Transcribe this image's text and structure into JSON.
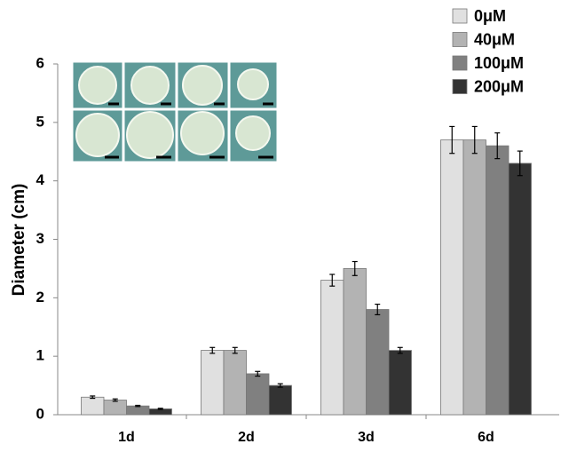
{
  "chart_data": {
    "type": "bar",
    "y_label": "Diameter (cm)",
    "categories": [
      "1d",
      "2d",
      "3d",
      "6d"
    ],
    "series": [
      {
        "name": "0μM",
        "color": "#e0e0e0",
        "values": [
          0.3,
          1.1,
          2.3,
          4.7
        ],
        "errors": [
          0.02,
          0.05,
          0.1,
          0.23
        ]
      },
      {
        "name": "40μM",
        "color": "#b3b3b3",
        "values": [
          0.25,
          1.1,
          2.5,
          4.7
        ],
        "errors": [
          0.02,
          0.05,
          0.12,
          0.23
        ]
      },
      {
        "name": "100μM",
        "color": "#808080",
        "values": [
          0.15,
          0.7,
          1.8,
          4.6
        ],
        "errors": [
          0.01,
          0.04,
          0.09,
          0.22
        ]
      },
      {
        "name": "200μM",
        "color": "#333333",
        "values": [
          0.1,
          0.5,
          1.1,
          4.3
        ],
        "errors": [
          0.01,
          0.03,
          0.05,
          0.21
        ]
      }
    ],
    "ylim": [
      0,
      6
    ],
    "yticks": [
      0,
      1,
      2,
      3,
      4,
      5,
      6
    ],
    "grid": false,
    "legend": "top-right"
  }
}
